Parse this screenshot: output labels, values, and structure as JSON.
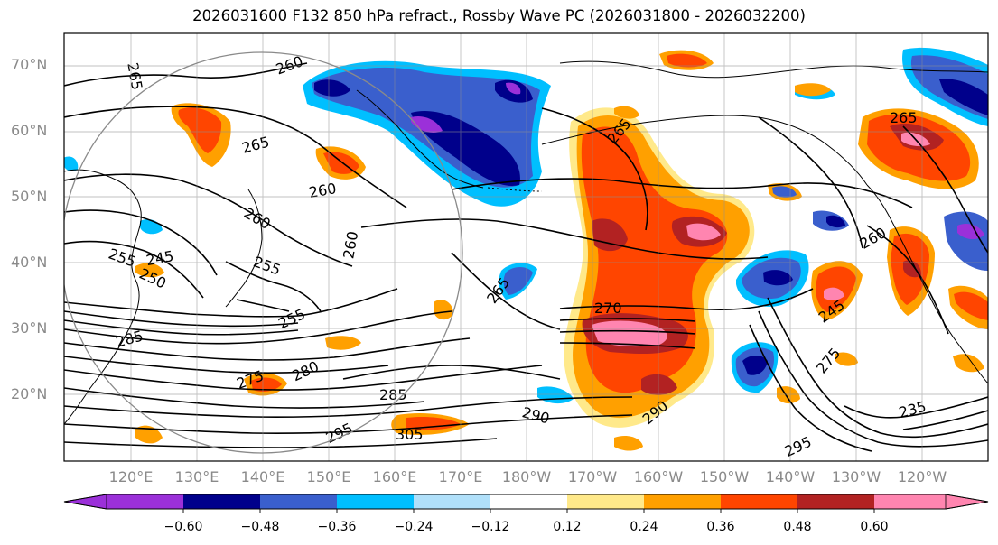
{
  "title": "2026031600 F132 850 hPa refract., Rossby Wave PC (2026031800 - 2026032200)",
  "map": {
    "lat_ticks": [
      "70°N",
      "60°N",
      "50°N",
      "40°N",
      "30°N",
      "20°N"
    ],
    "lon_ticks": [
      "120°E",
      "130°E",
      "140°E",
      "150°E",
      "160°E",
      "170°E",
      "180°W",
      "170°W",
      "160°W",
      "150°W",
      "140°W",
      "130°W",
      "120°W"
    ],
    "contour_levels": [
      "265",
      "260",
      "265",
      "260",
      "260",
      "260",
      "255",
      "250",
      "245",
      "255",
      "255",
      "265",
      "270",
      "275",
      "280",
      "285",
      "290",
      "295",
      "305",
      "290",
      "285",
      "265",
      "260",
      "265",
      "275",
      "295",
      "235",
      "245"
    ],
    "colors": {
      "purple": "#9b30d9",
      "navy": "#00008b",
      "blue": "#3a5fcd",
      "deepskyblue": "#00bfff",
      "lightblue": "#b0e0fa",
      "yellow": "#ffe98a",
      "orange": "#ffa000",
      "redorange": "#ff4500",
      "firebrick": "#b22222",
      "pink": "#ff85b0"
    }
  },
  "colorbar": {
    "ticks": [
      "−0.60",
      "−0.48",
      "−0.36",
      "−0.24",
      "−0.12",
      "0.12",
      "0.24",
      "0.36",
      "0.48",
      "0.60"
    ],
    "colors": [
      "#9b30d9",
      "#00008b",
      "#3a5fcd",
      "#00bfff",
      "#b0e0fa",
      "#ffffff",
      "#ffe98a",
      "#ffa000",
      "#ff4500",
      "#b22222",
      "#ff85b0"
    ]
  }
}
